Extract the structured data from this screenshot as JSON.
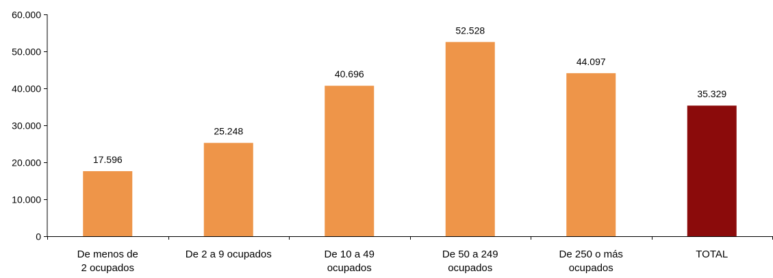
{
  "chart_data": {
    "type": "bar",
    "title": "",
    "xlabel": "",
    "ylabel": "",
    "categories": [
      [
        "De menos de",
        "2 ocupados"
      ],
      [
        "De 2 a 9 ocupados"
      ],
      [
        "De 10 a 49",
        "ocupados"
      ],
      [
        "De 50 a 249",
        "ocupados"
      ],
      [
        "De 250 o más",
        "ocupados"
      ],
      [
        "TOTAL"
      ]
    ],
    "values": [
      17596,
      25248,
      40696,
      52528,
      44097,
      35329
    ],
    "value_labels": [
      "17.596",
      "25.248",
      "40.696",
      "52.528",
      "44.097",
      "35.329"
    ],
    "yticks": [
      0,
      10000,
      20000,
      30000,
      40000,
      50000,
      60000
    ],
    "ytick_labels": [
      "0",
      "10.000",
      "20.000",
      "30.000",
      "40.000",
      "50.000",
      "60.000"
    ],
    "ylim": [
      0,
      60000
    ],
    "grid": false,
    "colors": {
      "bar": "#EE9549",
      "highlight": "#8B0B0B",
      "axis": "#000000"
    },
    "highlight_index": 5
  }
}
